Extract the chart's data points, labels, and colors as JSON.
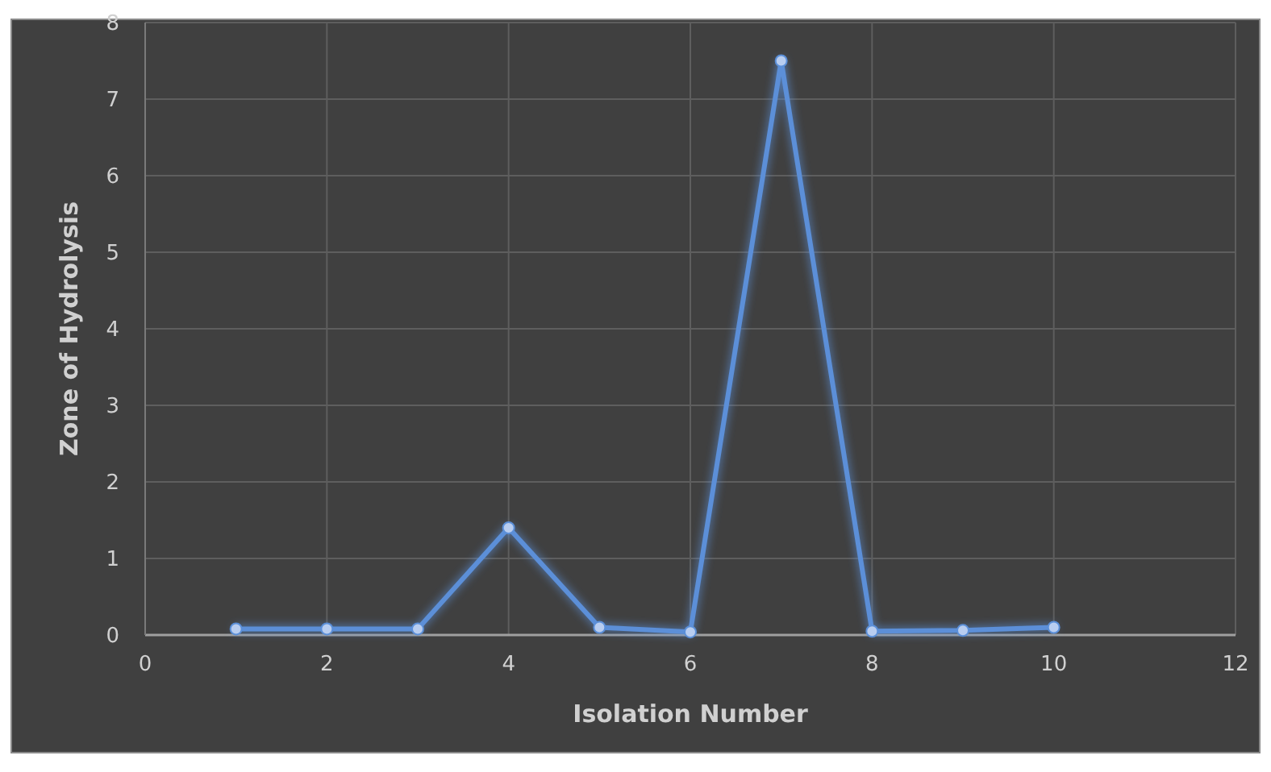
{
  "chart_data": {
    "type": "line",
    "xlabel": "Isolation Number",
    "ylabel": "Zone of Hydrolysis",
    "x": [
      1,
      2,
      3,
      4,
      5,
      6,
      7,
      8,
      9,
      10
    ],
    "series": [
      {
        "color": "#5b8fd8",
        "values": [
          0.08,
          0.08,
          0.08,
          1.4,
          0.1,
          0.04,
          7.5,
          0.05,
          0.06,
          0.1
        ]
      }
    ],
    "xlim": [
      0,
      12
    ],
    "xticks": [
      0,
      2,
      4,
      6,
      8,
      10,
      12
    ],
    "ylim": [
      0,
      8
    ],
    "yticks": [
      0,
      1,
      2,
      3,
      4,
      5,
      6,
      7,
      8
    ],
    "grid": true,
    "marker": "circle",
    "line_style": "solid"
  }
}
